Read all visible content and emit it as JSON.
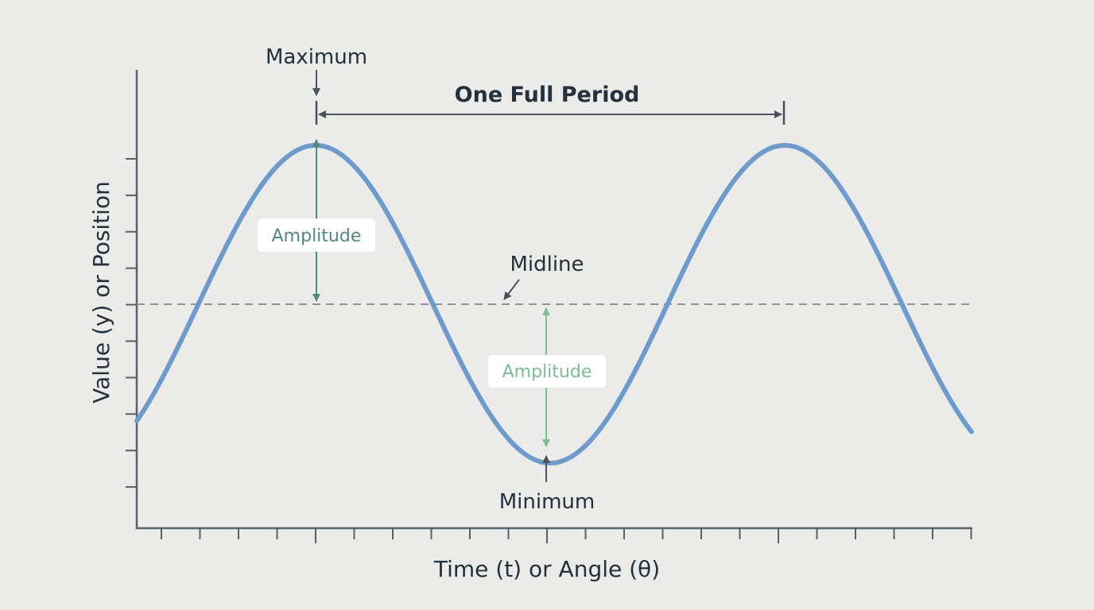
{
  "labels": {
    "maximum": "Maximum",
    "minimum": "Minimum",
    "midline": "Midline",
    "period": "One Full Period",
    "amplitude_top": "Amplitude",
    "amplitude_bottom": "Amplitude",
    "x_axis": "Time (t) or Angle (θ)",
    "y_axis": "Value (y) or Position"
  },
  "colors": {
    "background": "#ebebea",
    "curve": "#6e9bcc",
    "axis": "#5a6068",
    "annotation": "#4a525c",
    "midline": "#8f9296",
    "amplitude_top": "#4e8a80",
    "amplitude_bottom": "#7dbd93"
  }
}
